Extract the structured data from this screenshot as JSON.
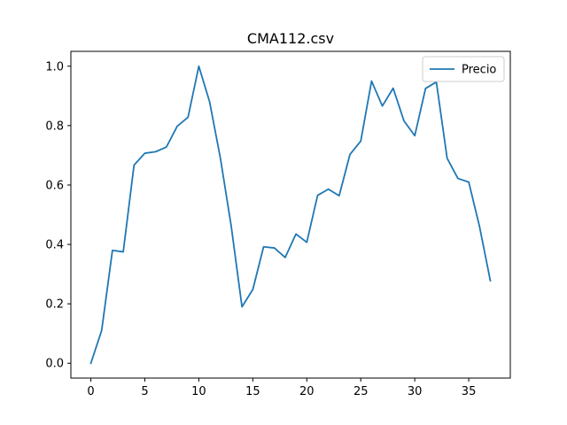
{
  "chart_data": {
    "type": "line",
    "title": "CMA112.csv",
    "xlabel": "",
    "ylabel": "",
    "xlim": [
      -1.85,
      38.85
    ],
    "ylim": [
      -0.05,
      1.05
    ],
    "xticks": [
      0,
      5,
      10,
      15,
      20,
      25,
      30,
      35
    ],
    "yticks": [
      0.0,
      0.2,
      0.4,
      0.6,
      0.8,
      1.0
    ],
    "ytick_labels": [
      "0.0",
      "0.2",
      "0.4",
      "0.6",
      "0.8",
      "1.0"
    ],
    "legend_position": "top-right",
    "grid": false,
    "series": [
      {
        "name": "Precio",
        "color": "#1f77b4",
        "x": [
          0,
          1,
          2,
          3,
          4,
          5,
          6,
          7,
          8,
          9,
          10,
          11,
          12,
          13,
          14,
          15,
          16,
          17,
          18,
          19,
          20,
          21,
          22,
          23,
          24,
          25,
          26,
          27,
          28,
          29,
          30,
          31,
          32,
          33,
          34,
          35,
          36,
          37
        ],
        "values": [
          0.0,
          0.11,
          0.38,
          0.375,
          0.667,
          0.707,
          0.712,
          0.728,
          0.798,
          0.828,
          1.0,
          0.88,
          0.69,
          0.462,
          0.19,
          0.248,
          0.392,
          0.388,
          0.356,
          0.435,
          0.407,
          0.565,
          0.586,
          0.564,
          0.703,
          0.748,
          0.95,
          0.866,
          0.926,
          0.816,
          0.766,
          0.925,
          0.947,
          0.69,
          0.622,
          0.61,
          0.46,
          0.278
        ]
      }
    ]
  }
}
